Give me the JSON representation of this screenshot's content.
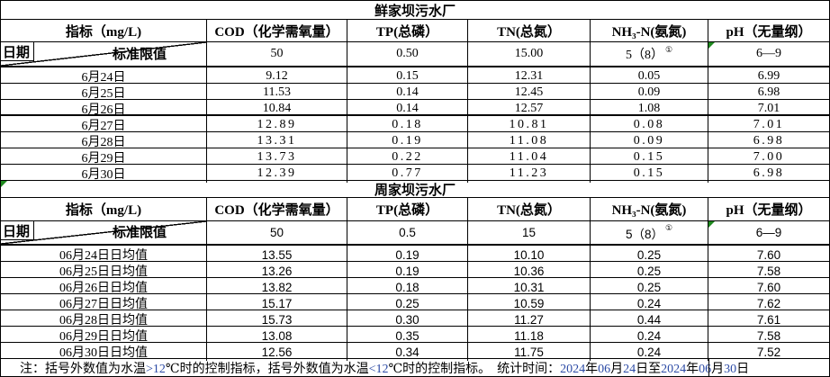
{
  "colors": {
    "flag_green": "#1f8a1f",
    "digit_blue": "#2b4aa5",
    "border_black": "#000000",
    "background": "#ffffff"
  },
  "tables": [
    {
      "title": "鲜家坝污水厂",
      "corner": {
        "indicator_label": "指标（mg/L)",
        "date_label": "日期",
        "limit_label": "标准限值"
      },
      "columns": [
        "COD（化学需氧量）",
        "TP(总磷）",
        "TN(总氮）",
        "NH₃-N(氨氮)",
        "pH（无量纲）"
      ],
      "limits": [
        "50",
        "0.50",
        "15.00",
        "5（8）",
        "6—9"
      ],
      "limit_superscript": "①",
      "flags": {
        "ph_limit_corner": true,
        "title_corner": false
      },
      "rows": [
        {
          "date": "6月24日",
          "values": [
            "9.12",
            "0.15",
            "12.31",
            "0.05",
            "6.99"
          ]
        },
        {
          "date": "6月25日",
          "values": [
            "11.53",
            "0.14",
            "12.45",
            "0.09",
            "6.98"
          ]
        },
        {
          "date": "6月26日",
          "values": [
            "10.84",
            "0.14",
            "12.57",
            "1.08",
            "7.01"
          ]
        },
        {
          "date": "6月27日",
          "values": [
            "12.89",
            "0.18",
            "10.81",
            "0.08",
            "7.01"
          ]
        },
        {
          "date": "6月28日",
          "values": [
            "13.31",
            "0.19",
            "11.08",
            "0.09",
            "6.98"
          ]
        },
        {
          "date": "6月29日",
          "values": [
            "13.73",
            "0.22",
            "11.04",
            "0.15",
            "7.00"
          ]
        },
        {
          "date": "6月30日",
          "values": [
            "12.39",
            "0.77",
            "11.23",
            "0.15",
            "6.98"
          ]
        }
      ]
    },
    {
      "title": "周家坝污水厂",
      "corner": {
        "indicator_label": "指标（mg/L)",
        "date_label": "日期",
        "limit_label": "标准限值"
      },
      "columns": [
        "COD（化学需氧量）",
        "TP(总磷）",
        "TN(总氮）",
        "NH₃-N(氨氮)",
        "pH（无量纲）"
      ],
      "limits": [
        "50",
        "0.5",
        "15",
        "5（8）",
        "6—9"
      ],
      "limit_superscript": "①",
      "flags": {
        "ph_limit_corner": true,
        "title_corner": true
      },
      "rows": [
        {
          "date": "06月24日日均值",
          "values": [
            "13.55",
            "0.19",
            "10.10",
            "0.25",
            "7.60"
          ]
        },
        {
          "date": "06月25日日均值",
          "values": [
            "13.26",
            "0.19",
            "10.36",
            "0.25",
            "7.58"
          ]
        },
        {
          "date": "06月26日日均值",
          "values": [
            "13.82",
            "0.18",
            "10.31",
            "0.25",
            "7.60"
          ]
        },
        {
          "date": "06月27日日均值",
          "values": [
            "15.17",
            "0.25",
            "10.59",
            "0.24",
            "7.62"
          ]
        },
        {
          "date": "06月28日日均值",
          "values": [
            "15.73",
            "0.30",
            "11.27",
            "0.44",
            "7.61"
          ]
        },
        {
          "date": "06月29日日均值",
          "values": [
            "13.08",
            "0.35",
            "11.18",
            "0.24",
            "7.58"
          ]
        },
        {
          "date": "06月30日日均值",
          "values": [
            "12.56",
            "0.34",
            "11.75",
            "0.24",
            "7.52"
          ]
        }
      ]
    }
  ],
  "footer": {
    "segments": [
      {
        "text": "注：括号外数值为水温",
        "color": "#000000"
      },
      {
        "text": ">12",
        "color": "#2b4aa5"
      },
      {
        "text": "℃时的控制指标，括号外数值为水温",
        "color": "#000000"
      },
      {
        "text": "<12",
        "color": "#2b4aa5"
      },
      {
        "text": "℃时的控制指标。",
        "color": "#000000"
      },
      {
        "text": "　统计时间：",
        "color": "#000000"
      },
      {
        "text": "2024",
        "color": "#2b4aa5"
      },
      {
        "text": "年",
        "color": "#000000"
      },
      {
        "text": "06",
        "color": "#2b4aa5"
      },
      {
        "text": "月",
        "color": "#000000"
      },
      {
        "text": "24",
        "color": "#2b4aa5"
      },
      {
        "text": "日至",
        "color": "#000000"
      },
      {
        "text": "2024",
        "color": "#2b4aa5"
      },
      {
        "text": "年",
        "color": "#000000"
      },
      {
        "text": "06",
        "color": "#2b4aa5"
      },
      {
        "text": "月",
        "color": "#000000"
      },
      {
        "text": "30",
        "color": "#2b4aa5"
      },
      {
        "text": "日",
        "color": "#000000"
      }
    ]
  }
}
